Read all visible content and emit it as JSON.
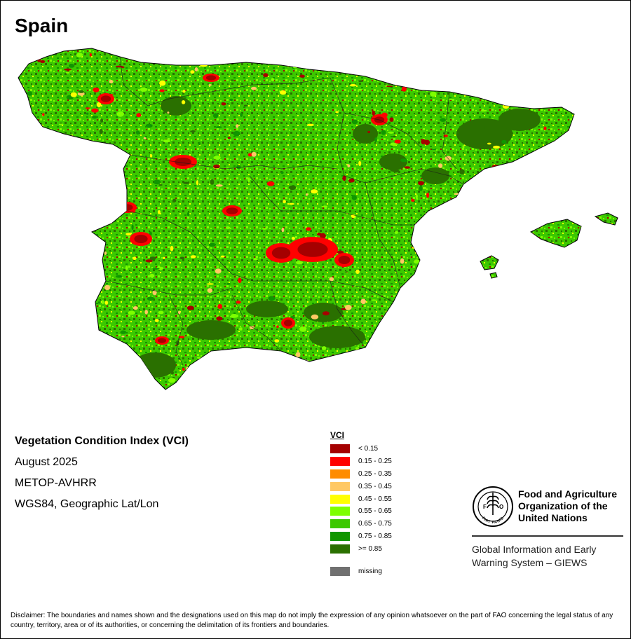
{
  "map": {
    "title": "Spain",
    "palette": {
      "lt015": "#a50000",
      "r015_025": "#ff0000",
      "r025_035": "#ff8c00",
      "r035_045": "#ffc864",
      "r045_055": "#ffff00",
      "r055_065": "#7dff00",
      "r065_075": "#3cc800",
      "r075_085": "#109600",
      "ge085": "#2a7000",
      "missing": "#707070"
    }
  },
  "info": {
    "title": "Vegetation Condition Index (VCI)",
    "date": "August 2025",
    "sensor": "METOP-AVHRR",
    "projection": "WGS84, Geographic Lat/Lon"
  },
  "legend": {
    "title": "VCI",
    "items": [
      {
        "label": "< 0.15",
        "color": "#a50000"
      },
      {
        "label": "0.15 - 0.25",
        "color": "#ff0000"
      },
      {
        "label": "0.25 - 0.35",
        "color": "#ff8c00"
      },
      {
        "label": "0.35 - 0.45",
        "color": "#ffc864"
      },
      {
        "label": "0.45 - 0.55",
        "color": "#ffff00"
      },
      {
        "label": "0.55 - 0.65",
        "color": "#7dff00"
      },
      {
        "label": "0.65 - 0.75",
        "color": "#3cc800"
      },
      {
        "label": "0.75 - 0.85",
        "color": "#109600"
      },
      {
        "label": ">= 0.85",
        "color": "#2a7000"
      }
    ],
    "missing": {
      "label": "missing",
      "color": "#707070"
    }
  },
  "fao": {
    "logo_icon": "fao-emblem-icon",
    "logo_text": "FIAT PANIS",
    "name": "Food and Agriculture\nOrganization of the\nUnited Nations",
    "giews": "Global Information and Early\nWarning System – GIEWS"
  },
  "disclaimer": "Disclaimer: The boundaries and names shown and the designations used on this map do not imply the expression of any opinion whatsoever on the part of FAO concerning the legal status of any country, territory, area or of its authorities, or concerning the delimitation of its frontiers and boundaries."
}
